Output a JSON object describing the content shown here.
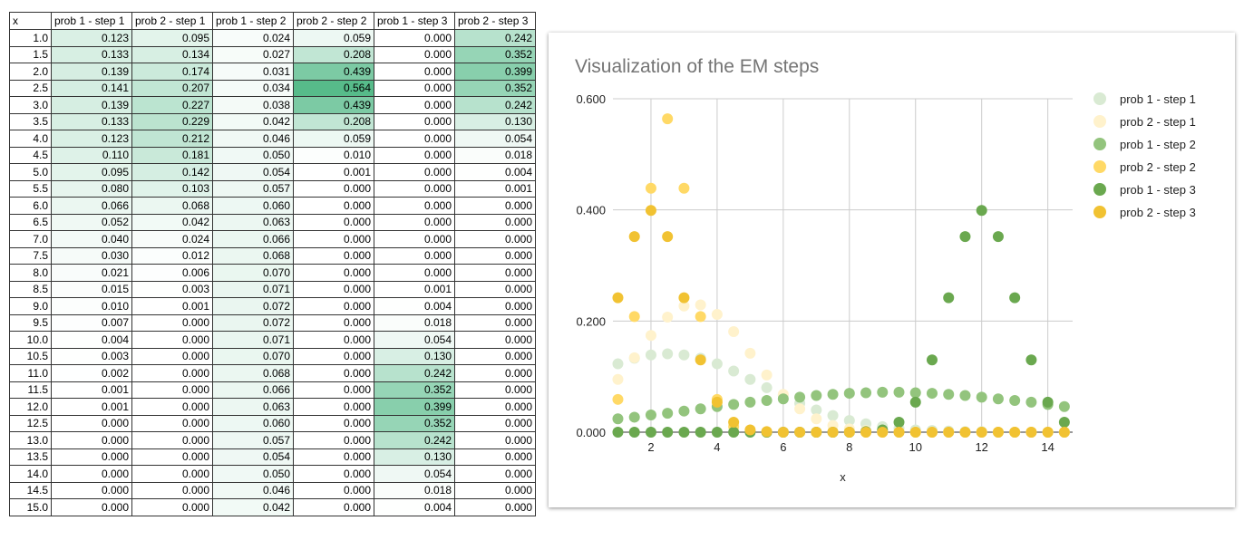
{
  "table": {
    "headers": [
      "x",
      "prob 1 - step 1",
      "prob 2 - step 1",
      "prob 1 - step 2",
      "prob 2 - step 2",
      "prob 1 - step 3",
      "prob 2 - step 3"
    ],
    "rows": [
      [
        "1.0",
        "0.123",
        "0.095",
        "0.024",
        "0.059",
        "0.000",
        "0.242"
      ],
      [
        "1.5",
        "0.133",
        "0.134",
        "0.027",
        "0.208",
        "0.000",
        "0.352"
      ],
      [
        "2.0",
        "0.139",
        "0.174",
        "0.031",
        "0.439",
        "0.000",
        "0.399"
      ],
      [
        "2.5",
        "0.141",
        "0.207",
        "0.034",
        "0.564",
        "0.000",
        "0.352"
      ],
      [
        "3.0",
        "0.139",
        "0.227",
        "0.038",
        "0.439",
        "0.000",
        "0.242"
      ],
      [
        "3.5",
        "0.133",
        "0.229",
        "0.042",
        "0.208",
        "0.000",
        "0.130"
      ],
      [
        "4.0",
        "0.123",
        "0.212",
        "0.046",
        "0.059",
        "0.000",
        "0.054"
      ],
      [
        "4.5",
        "0.110",
        "0.181",
        "0.050",
        "0.010",
        "0.000",
        "0.018"
      ],
      [
        "5.0",
        "0.095",
        "0.142",
        "0.054",
        "0.001",
        "0.000",
        "0.004"
      ],
      [
        "5.5",
        "0.080",
        "0.103",
        "0.057",
        "0.000",
        "0.000",
        "0.001"
      ],
      [
        "6.0",
        "0.066",
        "0.068",
        "0.060",
        "0.000",
        "0.000",
        "0.000"
      ],
      [
        "6.5",
        "0.052",
        "0.042",
        "0.063",
        "0.000",
        "0.000",
        "0.000"
      ],
      [
        "7.0",
        "0.040",
        "0.024",
        "0.066",
        "0.000",
        "0.000",
        "0.000"
      ],
      [
        "7.5",
        "0.030",
        "0.012",
        "0.068",
        "0.000",
        "0.000",
        "0.000"
      ],
      [
        "8.0",
        "0.021",
        "0.006",
        "0.070",
        "0.000",
        "0.000",
        "0.000"
      ],
      [
        "8.5",
        "0.015",
        "0.003",
        "0.071",
        "0.000",
        "0.001",
        "0.000"
      ],
      [
        "9.0",
        "0.010",
        "0.001",
        "0.072",
        "0.000",
        "0.004",
        "0.000"
      ],
      [
        "9.5",
        "0.007",
        "0.000",
        "0.072",
        "0.000",
        "0.018",
        "0.000"
      ],
      [
        "10.0",
        "0.004",
        "0.000",
        "0.071",
        "0.000",
        "0.054",
        "0.000"
      ],
      [
        "10.5",
        "0.003",
        "0.000",
        "0.070",
        "0.000",
        "0.130",
        "0.000"
      ],
      [
        "11.0",
        "0.002",
        "0.000",
        "0.068",
        "0.000",
        "0.242",
        "0.000"
      ],
      [
        "11.5",
        "0.001",
        "0.000",
        "0.066",
        "0.000",
        "0.352",
        "0.000"
      ],
      [
        "12.0",
        "0.001",
        "0.000",
        "0.063",
        "0.000",
        "0.399",
        "0.000"
      ],
      [
        "12.5",
        "0.000",
        "0.000",
        "0.060",
        "0.000",
        "0.352",
        "0.000"
      ],
      [
        "13.0",
        "0.000",
        "0.000",
        "0.057",
        "0.000",
        "0.242",
        "0.000"
      ],
      [
        "13.5",
        "0.000",
        "0.000",
        "0.054",
        "0.000",
        "0.130",
        "0.000"
      ],
      [
        "14.0",
        "0.000",
        "0.000",
        "0.050",
        "0.000",
        "0.054",
        "0.000"
      ],
      [
        "14.5",
        "0.000",
        "0.000",
        "0.046",
        "0.000",
        "0.018",
        "0.000"
      ],
      [
        "15.0",
        "0.000",
        "0.000",
        "0.042",
        "0.000",
        "0.004",
        "0.000"
      ]
    ],
    "heat_color": "#57bb8a"
  },
  "chart_data": {
    "type": "scatter",
    "title": "Visualization of the EM steps",
    "xlabel": "x",
    "ylabel": "",
    "xlim": [
      0.85,
      14.75
    ],
    "ylim": [
      0,
      0.6
    ],
    "xticks": [
      "2",
      "4",
      "6",
      "8",
      "10",
      "12",
      "14"
    ],
    "yticks": [
      "0.000",
      "0.200",
      "0.400",
      "0.600"
    ],
    "grid": true,
    "legend": "right",
    "x": [
      1.0,
      1.5,
      2.0,
      2.5,
      3.0,
      3.5,
      4.0,
      4.5,
      5.0,
      5.5,
      6.0,
      6.5,
      7.0,
      7.5,
      8.0,
      8.5,
      9.0,
      9.5,
      10.0,
      10.5,
      11.0,
      11.5,
      12.0,
      12.5,
      13.0,
      13.5,
      14.0,
      14.5
    ],
    "series": [
      {
        "name": "prob 1 - step 1",
        "color": "#d9ead3",
        "values": [
          0.123,
          0.133,
          0.139,
          0.141,
          0.139,
          0.133,
          0.123,
          0.11,
          0.095,
          0.08,
          0.066,
          0.052,
          0.04,
          0.03,
          0.021,
          0.015,
          0.01,
          0.007,
          0.004,
          0.003,
          0.002,
          0.001,
          0.001,
          0,
          0,
          0,
          0,
          0
        ]
      },
      {
        "name": "prob 2 - step 1",
        "color": "#fff2cc",
        "values": [
          0.095,
          0.134,
          0.174,
          0.207,
          0.227,
          0.229,
          0.212,
          0.181,
          0.142,
          0.103,
          0.068,
          0.042,
          0.024,
          0.012,
          0.006,
          0.003,
          0.001,
          0,
          0,
          0,
          0,
          0,
          0,
          0,
          0,
          0,
          0,
          0
        ]
      },
      {
        "name": "prob 1 - step 2",
        "color": "#93c47d",
        "values": [
          0.024,
          0.027,
          0.031,
          0.034,
          0.038,
          0.042,
          0.046,
          0.05,
          0.054,
          0.057,
          0.06,
          0.063,
          0.066,
          0.068,
          0.07,
          0.071,
          0.072,
          0.072,
          0.071,
          0.07,
          0.068,
          0.066,
          0.063,
          0.06,
          0.057,
          0.054,
          0.05,
          0.046
        ]
      },
      {
        "name": "prob 2 - step 2",
        "color": "#ffd966",
        "values": [
          0.059,
          0.208,
          0.439,
          0.564,
          0.439,
          0.208,
          0.059,
          0.01,
          0.001,
          0,
          0,
          0,
          0,
          0,
          0,
          0,
          0,
          0,
          0,
          0,
          0,
          0,
          0,
          0,
          0,
          0,
          0,
          0
        ]
      },
      {
        "name": "prob 1 - step 3",
        "color": "#6aa84f",
        "values": [
          0,
          0,
          0,
          0,
          0,
          0,
          0,
          0,
          0,
          0,
          0,
          0,
          0,
          0,
          0,
          0.001,
          0.004,
          0.018,
          0.054,
          0.13,
          0.242,
          0.352,
          0.399,
          0.352,
          0.242,
          0.13,
          0.054,
          0.018
        ]
      },
      {
        "name": "prob 2 - step 3",
        "color": "#f1c232",
        "values": [
          0.242,
          0.352,
          0.399,
          0.352,
          0.242,
          0.13,
          0.054,
          0.018,
          0.004,
          0.001,
          0,
          0,
          0,
          0,
          0,
          0,
          0,
          0,
          0,
          0,
          0,
          0,
          0,
          0,
          0,
          0,
          0,
          0
        ]
      }
    ]
  }
}
